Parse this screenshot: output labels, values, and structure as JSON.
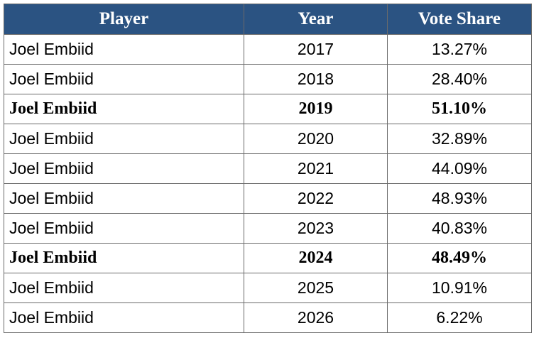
{
  "table": {
    "header": [
      "Player",
      "Year",
      "Vote Share"
    ],
    "rows": [
      {
        "cells": [
          "Joel Embiid",
          "2017",
          "13.27%"
        ],
        "bold": false
      },
      {
        "cells": [
          "Joel Embiid",
          "2018",
          "28.40%"
        ],
        "bold": false
      },
      {
        "cells": [
          "Joel Embiid",
          "2019",
          "51.10%"
        ],
        "bold": true
      },
      {
        "cells": [
          "Joel Embiid",
          "2020",
          "32.89%"
        ],
        "bold": false
      },
      {
        "cells": [
          "Joel Embiid",
          "2021",
          "44.09%"
        ],
        "bold": false
      },
      {
        "cells": [
          "Joel Embiid",
          "2022",
          "48.93%"
        ],
        "bold": false
      },
      {
        "cells": [
          "Joel Embiid",
          "2023",
          "40.83%"
        ],
        "bold": false
      },
      {
        "cells": [
          "Joel Embiid",
          "2024",
          "48.49%"
        ],
        "bold": true
      },
      {
        "cells": [
          "Joel Embiid",
          "2025",
          "10.91%"
        ],
        "bold": false
      },
      {
        "cells": [
          "Joel Embiid",
          "2026",
          "6.22%"
        ],
        "bold": false
      }
    ]
  }
}
